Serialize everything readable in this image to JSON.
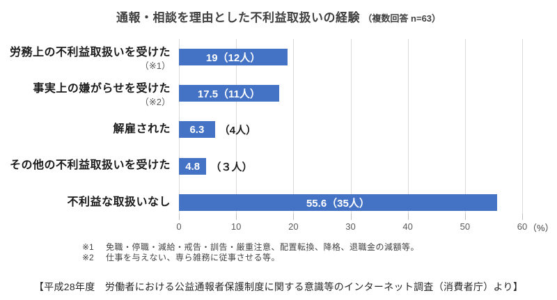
{
  "title": {
    "main": "通報・相談を理由とした不利益取扱いの経験",
    "sub": "（複数回答 n=63）"
  },
  "chart_data": {
    "type": "bar",
    "orientation": "horizontal",
    "title": "通報・相談を理由とした不利益取扱いの経験（複数回答 n=63）",
    "sample_size": "n=63",
    "xlabel": "（%）",
    "xlim": [
      0,
      60
    ],
    "x_ticks": [
      "0",
      "10",
      "20",
      "30",
      "40",
      "50",
      "60"
    ],
    "grid": true,
    "legend": false,
    "bar_color": "#4472C4",
    "categories": [
      {
        "label": "労務上の不利益取扱いを受けた",
        "note": "（※1）"
      },
      {
        "label": "事実上の嫌がらせを受けた",
        "note": "（※2）"
      },
      {
        "label": "解雇された",
        "note": ""
      },
      {
        "label": "その他の不利益取扱いを受けた",
        "note": ""
      },
      {
        "label": "不利益な取扱いなし",
        "note": ""
      }
    ],
    "values": [
      19,
      17.5,
      6.3,
      4.8,
      55.6
    ],
    "counts": [
      12,
      11,
      4,
      3,
      35
    ],
    "bars": [
      {
        "inside_label": "19（12人）",
        "outside_label": ""
      },
      {
        "inside_label": "17.5（11人）",
        "outside_label": ""
      },
      {
        "inside_label": "6.3",
        "outside_label": "（4人）"
      },
      {
        "inside_label": "4.8",
        "outside_label": "（３人）"
      },
      {
        "inside_label": "55.6（35人）",
        "outside_label": ""
      }
    ]
  },
  "footnotes": [
    {
      "marker": "※1",
      "text": "免職・停職・減給・戒告・訓告・厳重注意、配置転換、降格、退職金の減額等。"
    },
    {
      "marker": "※2",
      "text": "仕事を与えない、専ら雑務に従事させる等。"
    }
  ],
  "source": "【平成28年度　労働者における公益通報者保護制度に関する意識等のインターネット調査（消費者庁）より】"
}
